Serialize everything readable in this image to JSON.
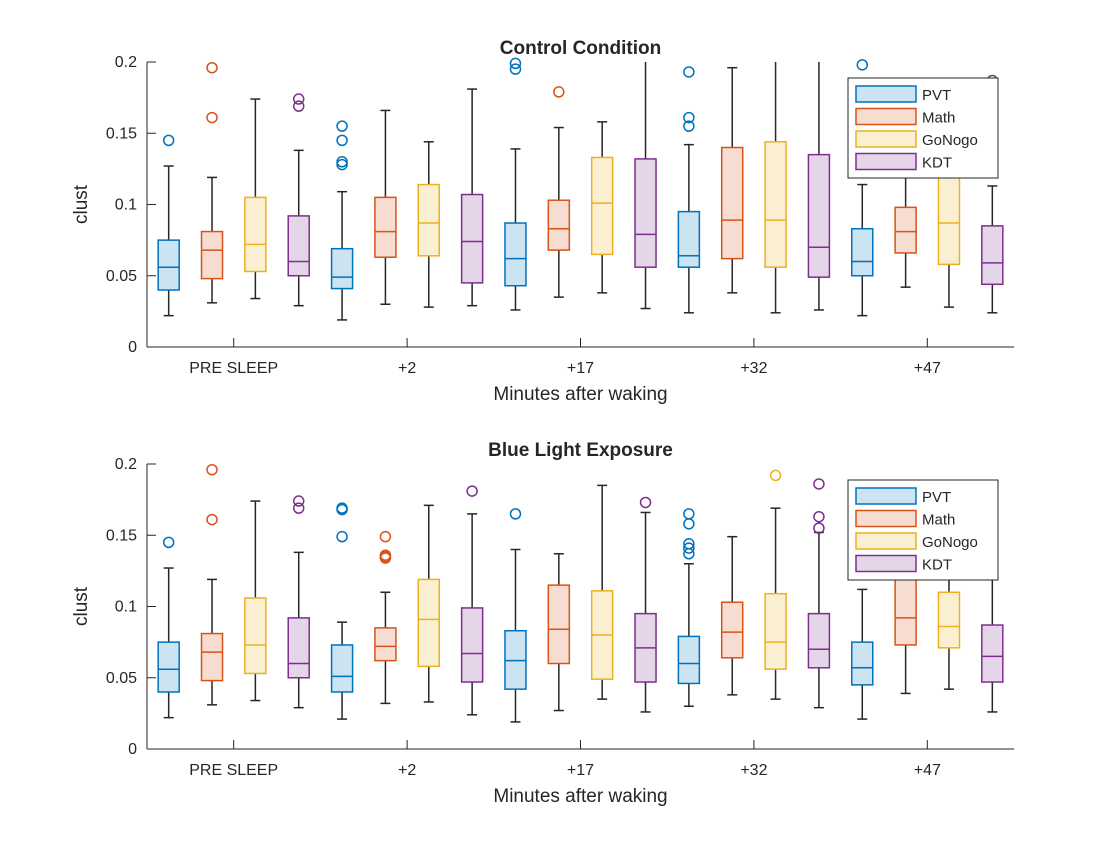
{
  "colors": {
    "PVT": "#0072BD",
    "Math": "#D95319",
    "GoNogo": "#EDB120",
    "KDT": "#7E2F8E",
    "whisker": "#262626",
    "axis": "#262626"
  },
  "chart_data": [
    {
      "type": "box",
      "title": "Control Condition",
      "xlabel": "Minutes after waking",
      "ylabel": "clust",
      "ylim": [
        0,
        0.2
      ],
      "yticks": [
        0,
        0.05,
        0.1,
        0.15,
        0.2
      ],
      "ytick_labels": [
        "0",
        "0.05",
        "0.1",
        "0.15",
        "0.2"
      ],
      "categories": [
        "PRE SLEEP",
        "+2",
        "+17",
        "+32",
        "+47"
      ],
      "legend": {
        "position": "top-right",
        "entries": [
          "PVT",
          "Math",
          "GoNogo",
          "KDT"
        ]
      },
      "series": [
        {
          "name": "PVT",
          "boxes": [
            {
              "min": 0.022,
              "q1": 0.04,
              "median": 0.056,
              "q3": 0.075,
              "max": 0.127,
              "outliers": [
                0.145
              ]
            },
            {
              "min": 0.019,
              "q1": 0.041,
              "median": 0.049,
              "q3": 0.069,
              "max": 0.109,
              "outliers": [
                0.128,
                0.13,
                0.145,
                0.155
              ]
            },
            {
              "min": 0.026,
              "q1": 0.043,
              "median": 0.062,
              "q3": 0.087,
              "max": 0.139,
              "outliers": [
                0.195,
                0.199
              ]
            },
            {
              "min": 0.024,
              "q1": 0.056,
              "median": 0.064,
              "q3": 0.095,
              "max": 0.142,
              "outliers": [
                0.155,
                0.161,
                0.193
              ]
            },
            {
              "min": 0.022,
              "q1": 0.05,
              "median": 0.06,
              "q3": 0.083,
              "max": 0.114,
              "outliers": [
                0.198
              ]
            }
          ]
        },
        {
          "name": "Math",
          "boxes": [
            {
              "min": 0.031,
              "q1": 0.048,
              "median": 0.068,
              "q3": 0.081,
              "max": 0.119,
              "outliers": [
                0.161,
                0.196
              ]
            },
            {
              "min": 0.03,
              "q1": 0.063,
              "median": 0.081,
              "q3": 0.105,
              "max": 0.166,
              "outliers": []
            },
            {
              "min": 0.035,
              "q1": 0.068,
              "median": 0.083,
              "q3": 0.103,
              "max": 0.154,
              "outliers": [
                0.179
              ]
            },
            {
              "min": 0.038,
              "q1": 0.062,
              "median": 0.089,
              "q3": 0.14,
              "max": 0.196,
              "outliers": []
            },
            {
              "min": 0.042,
              "q1": 0.066,
              "median": 0.081,
              "q3": 0.098,
              "max": 0.13,
              "outliers": []
            }
          ]
        },
        {
          "name": "GoNogo",
          "boxes": [
            {
              "min": 0.034,
              "q1": 0.053,
              "median": 0.072,
              "q3": 0.105,
              "max": 0.174,
              "outliers": []
            },
            {
              "min": 0.028,
              "q1": 0.064,
              "median": 0.087,
              "q3": 0.114,
              "max": 0.144,
              "outliers": []
            },
            {
              "min": 0.038,
              "q1": 0.065,
              "median": 0.101,
              "q3": 0.133,
              "max": 0.158,
              "outliers": []
            },
            {
              "min": 0.024,
              "q1": 0.056,
              "median": 0.089,
              "q3": 0.144,
              "max": 0.2,
              "outliers": []
            },
            {
              "min": 0.028,
              "q1": 0.058,
              "median": 0.087,
              "q3": 0.125,
              "max": 0.175,
              "outliers": []
            }
          ]
        },
        {
          "name": "KDT",
          "boxes": [
            {
              "min": 0.029,
              "q1": 0.05,
              "median": 0.06,
              "q3": 0.092,
              "max": 0.138,
              "outliers": [
                0.169,
                0.174
              ]
            },
            {
              "min": 0.029,
              "q1": 0.045,
              "median": 0.074,
              "q3": 0.107,
              "max": 0.181,
              "outliers": []
            },
            {
              "min": 0.027,
              "q1": 0.056,
              "median": 0.079,
              "q3": 0.132,
              "max": 0.2,
              "outliers": []
            },
            {
              "min": 0.026,
              "q1": 0.049,
              "median": 0.07,
              "q3": 0.135,
              "max": 0.2,
              "outliers": []
            },
            {
              "min": 0.024,
              "q1": 0.044,
              "median": 0.059,
              "q3": 0.085,
              "max": 0.113,
              "outliers": [
                0.187
              ]
            }
          ]
        }
      ]
    },
    {
      "type": "box",
      "title": "Blue Light Exposure",
      "xlabel": "Minutes after waking",
      "ylabel": "clust",
      "ylim": [
        0,
        0.2
      ],
      "yticks": [
        0,
        0.05,
        0.1,
        0.15,
        0.2
      ],
      "ytick_labels": [
        "0",
        "0.05",
        "0.1",
        "0.15",
        "0.2"
      ],
      "categories": [
        "PRE SLEEP",
        "+2",
        "+17",
        "+32",
        "+47"
      ],
      "legend": {
        "position": "top-right",
        "entries": [
          "PVT",
          "Math",
          "GoNogo",
          "KDT"
        ]
      },
      "series": [
        {
          "name": "PVT",
          "boxes": [
            {
              "min": 0.022,
              "q1": 0.04,
              "median": 0.056,
              "q3": 0.075,
              "max": 0.127,
              "outliers": [
                0.145
              ]
            },
            {
              "min": 0.021,
              "q1": 0.04,
              "median": 0.051,
              "q3": 0.073,
              "max": 0.089,
              "outliers": [
                0.149,
                0.168,
                0.169
              ]
            },
            {
              "min": 0.019,
              "q1": 0.042,
              "median": 0.062,
              "q3": 0.083,
              "max": 0.14,
              "outliers": [
                0.165
              ]
            },
            {
              "min": 0.03,
              "q1": 0.046,
              "median": 0.06,
              "q3": 0.079,
              "max": 0.13,
              "outliers": [
                0.137,
                0.141,
                0.144,
                0.158,
                0.165
              ]
            },
            {
              "min": 0.021,
              "q1": 0.045,
              "median": 0.057,
              "q3": 0.075,
              "max": 0.112,
              "outliers": []
            }
          ]
        },
        {
          "name": "Math",
          "boxes": [
            {
              "min": 0.031,
              "q1": 0.048,
              "median": 0.068,
              "q3": 0.081,
              "max": 0.119,
              "outliers": [
                0.161,
                0.196
              ]
            },
            {
              "min": 0.032,
              "q1": 0.062,
              "median": 0.072,
              "q3": 0.085,
              "max": 0.11,
              "outliers": [
                0.134,
                0.135,
                0.136,
                0.149
              ]
            },
            {
              "min": 0.027,
              "q1": 0.06,
              "median": 0.084,
              "q3": 0.115,
              "max": 0.137,
              "outliers": []
            },
            {
              "min": 0.038,
              "q1": 0.064,
              "median": 0.082,
              "q3": 0.103,
              "max": 0.149,
              "outliers": []
            },
            {
              "min": 0.039,
              "q1": 0.073,
              "median": 0.092,
              "q3": 0.128,
              "max": 0.16,
              "outliers": []
            }
          ]
        },
        {
          "name": "GoNogo",
          "boxes": [
            {
              "min": 0.034,
              "q1": 0.053,
              "median": 0.073,
              "q3": 0.106,
              "max": 0.174,
              "outliers": []
            },
            {
              "min": 0.033,
              "q1": 0.058,
              "median": 0.091,
              "q3": 0.119,
              "max": 0.171,
              "outliers": []
            },
            {
              "min": 0.035,
              "q1": 0.049,
              "median": 0.08,
              "q3": 0.111,
              "max": 0.185,
              "outliers": []
            },
            {
              "min": 0.035,
              "q1": 0.056,
              "median": 0.075,
              "q3": 0.109,
              "max": 0.169,
              "outliers": [
                0.192
              ]
            },
            {
              "min": 0.042,
              "q1": 0.071,
              "median": 0.086,
              "q3": 0.11,
              "max": 0.13,
              "outliers": []
            }
          ]
        },
        {
          "name": "KDT",
          "boxes": [
            {
              "min": 0.029,
              "q1": 0.05,
              "median": 0.06,
              "q3": 0.092,
              "max": 0.138,
              "outliers": [
                0.169,
                0.174
              ]
            },
            {
              "min": 0.024,
              "q1": 0.047,
              "median": 0.067,
              "q3": 0.099,
              "max": 0.165,
              "outliers": [
                0.181
              ]
            },
            {
              "min": 0.026,
              "q1": 0.047,
              "median": 0.071,
              "q3": 0.095,
              "max": 0.166,
              "outliers": [
                0.173
              ]
            },
            {
              "min": 0.029,
              "q1": 0.057,
              "median": 0.07,
              "q3": 0.095,
              "max": 0.152,
              "outliers": [
                0.155,
                0.163,
                0.186
              ]
            },
            {
              "min": 0.026,
              "q1": 0.047,
              "median": 0.065,
              "q3": 0.087,
              "max": 0.12,
              "outliers": []
            }
          ]
        }
      ]
    }
  ]
}
